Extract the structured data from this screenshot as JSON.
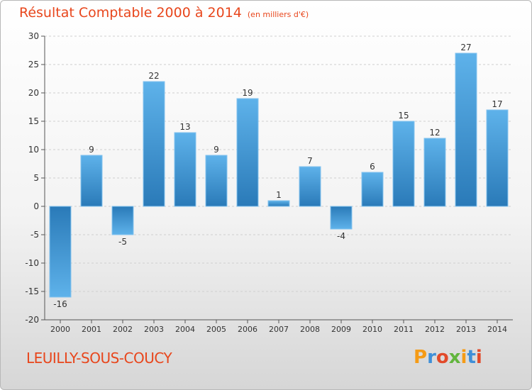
{
  "title": {
    "main": "Résultat Comptable 2000 à 2014",
    "unit": "(en milliers d'€)"
  },
  "commune": "LEUILLY-SOUS-COUCY",
  "logo": {
    "text": "Proxiti"
  },
  "colors": {
    "accent": "#e8461c",
    "bar_top": "#5eb2ea",
    "bar_bottom": "#2a7ab8"
  },
  "chart_data": {
    "type": "bar",
    "title": "Résultat Comptable 2000 à 2014",
    "ylabel": "(en milliers d'€)",
    "categories": [
      "2000",
      "2001",
      "2002",
      "2003",
      "2004",
      "2005",
      "2006",
      "2007",
      "2008",
      "2009",
      "2010",
      "2011",
      "2012",
      "2013",
      "2014"
    ],
    "values": [
      -16,
      9,
      -5,
      22,
      13,
      9,
      19,
      1,
      7,
      -4,
      6,
      15,
      12,
      27,
      17
    ],
    "ylim": [
      -20,
      30
    ],
    "yticks": [
      -20,
      -15,
      -10,
      -5,
      0,
      5,
      10,
      15,
      20,
      25,
      30
    ],
    "grid": true
  }
}
